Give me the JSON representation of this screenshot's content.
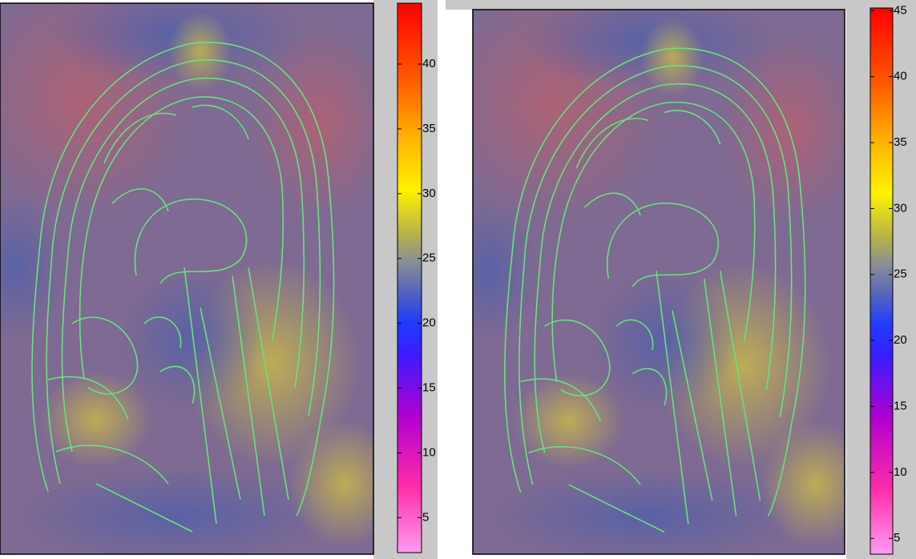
{
  "panels": [
    {
      "colorbar": {
        "range": [
          2.3,
          44.7
        ],
        "ticks": [
          5,
          10,
          15,
          20,
          25,
          30,
          35,
          40
        ]
      }
    },
    {
      "colorbar": {
        "range": [
          3.8,
          45.2
        ],
        "ticks": [
          5,
          10,
          15,
          20,
          25,
          30,
          35,
          40,
          45
        ]
      }
    }
  ]
}
